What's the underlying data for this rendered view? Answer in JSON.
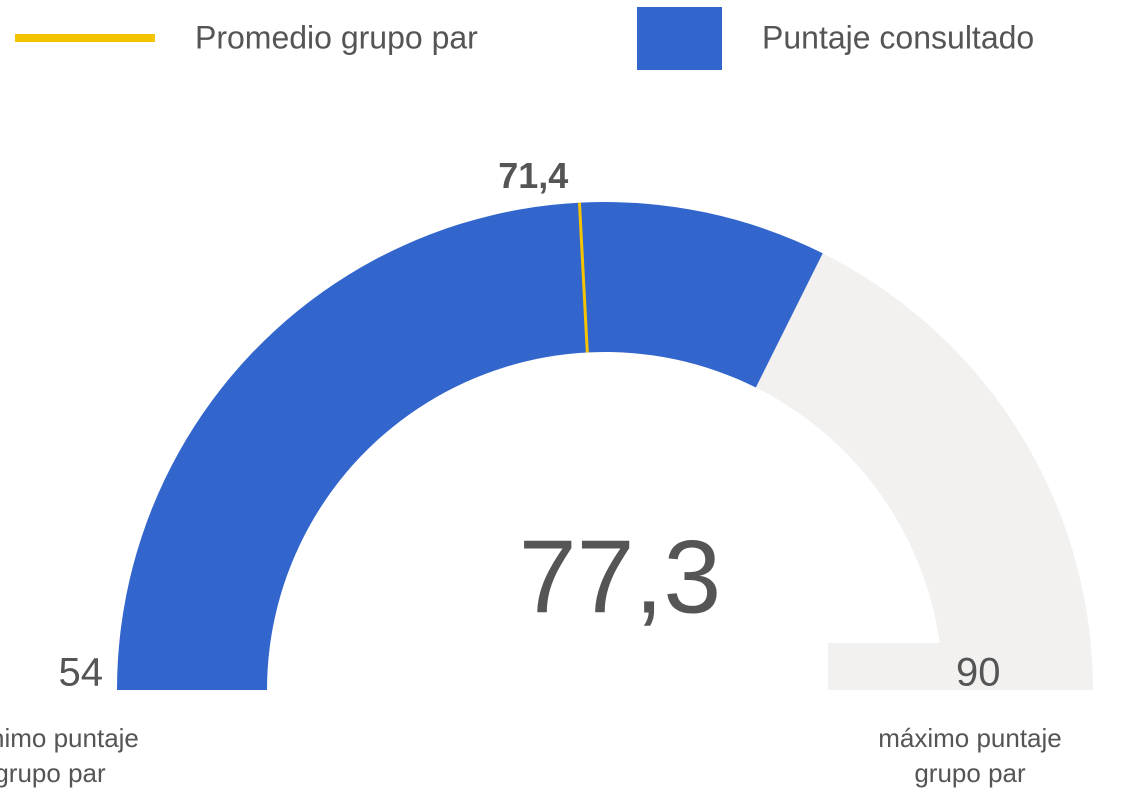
{
  "chart_data": {
    "type": "gauge",
    "min": 54,
    "max": 90,
    "value": 77.3,
    "value_label": "77,3",
    "value_name": "Puntaje consultado",
    "color": "#3366cc",
    "track_color": "#f2f1f0",
    "reference": {
      "name": "Promedio grupo par",
      "value": 71.4,
      "label": "71,4",
      "color": "#f5c400"
    },
    "min_text": [
      "mínimo puntaje",
      "grupo par"
    ],
    "max_text": [
      "máximo puntaje",
      "grupo par"
    ]
  }
}
